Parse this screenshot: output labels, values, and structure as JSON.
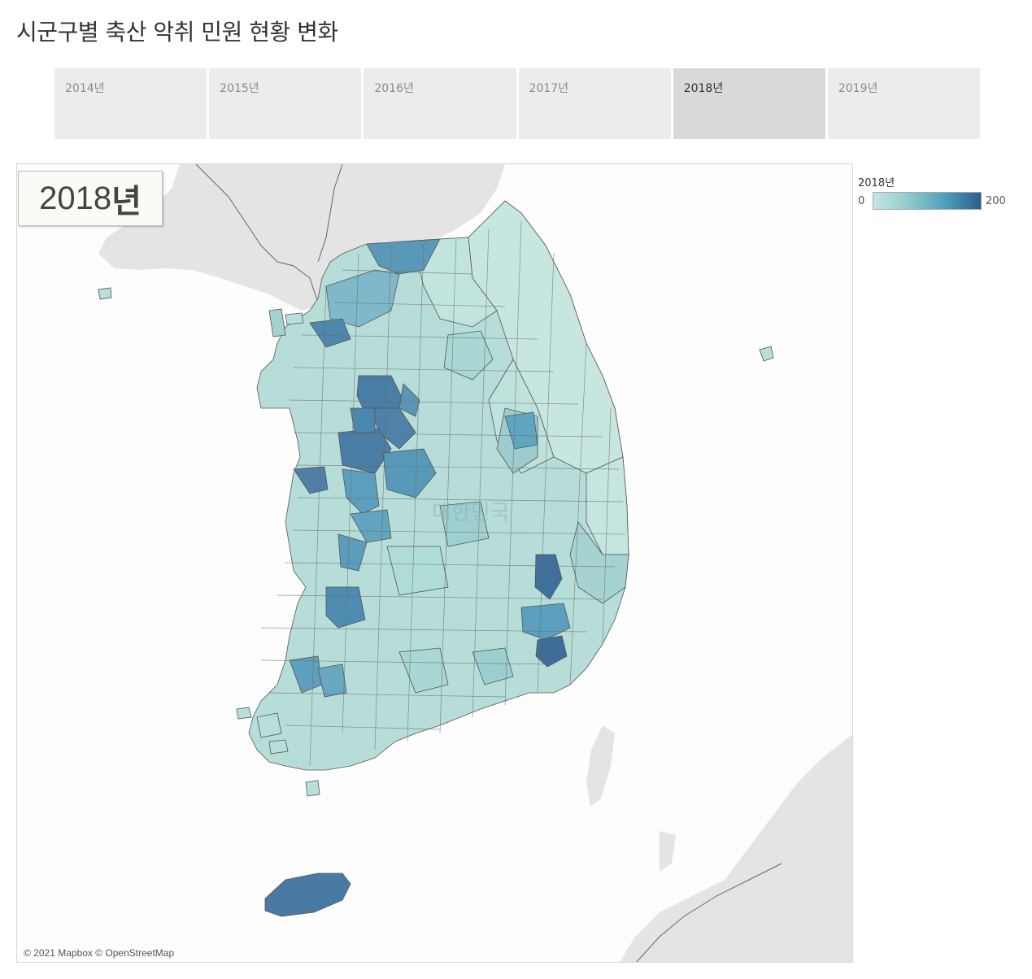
{
  "title": "시군구별 축산 악취 민원 현황 변화",
  "tabs": [
    "2014년",
    "2015년",
    "2016년",
    "2017년",
    "2018년",
    "2019년"
  ],
  "selected_tab": "2018년",
  "map": {
    "year_label_number": "2018",
    "year_label_suffix": "년",
    "attribution": "© 2021 Mapbox © OpenStreetMap",
    "watermark": "대한민국"
  },
  "legend": {
    "title": "2018년",
    "min": "0",
    "max": "200",
    "colors": [
      "#c6e6e1",
      "#8fcac9",
      "#4f9fbd",
      "#2e5d8a"
    ]
  }
}
